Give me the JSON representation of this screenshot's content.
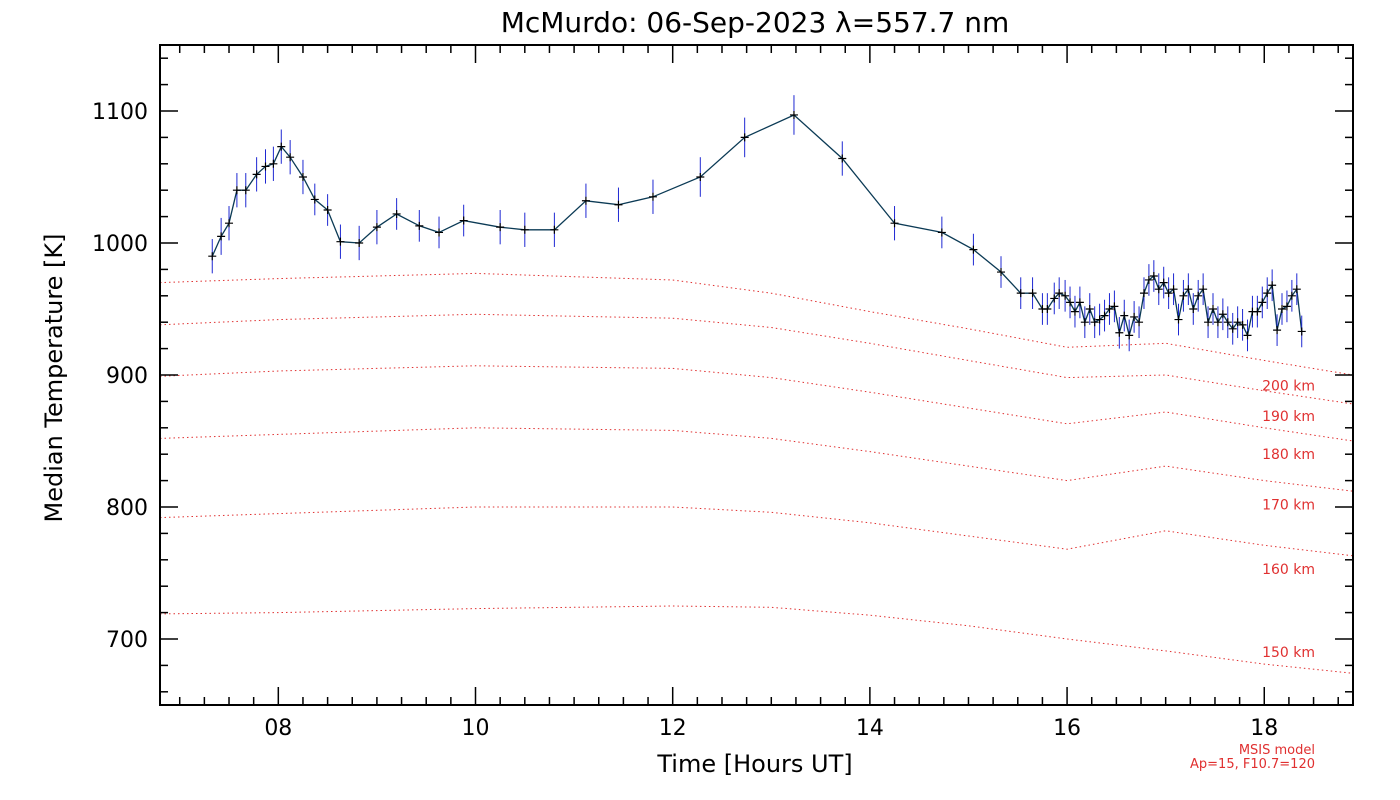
{
  "chart_data": {
    "type": "line",
    "title": "McMurdo: 06-Sep-2023 λ=557.7 nm",
    "xlabel": "Time [Hours UT]",
    "ylabel": "Median Temperature [K]",
    "xlim": [
      6.8,
      18.9
    ],
    "ylim": [
      650,
      1150
    ],
    "xticks": [
      8,
      10,
      12,
      14,
      16,
      18
    ],
    "xtick_labels": [
      "08",
      "10",
      "12",
      "14",
      "16",
      "18"
    ],
    "yticks": [
      700,
      800,
      900,
      1000,
      1100
    ],
    "ytick_labels": [
      "700",
      "800",
      "900",
      "1000",
      "1100"
    ],
    "grid": false,
    "series": [
      {
        "color": "#000000",
        "errcolor": "#1e28d2",
        "x": [
          7.33,
          7.42,
          7.5,
          7.58,
          7.67,
          7.78,
          7.87,
          7.95,
          8.03,
          8.12,
          8.25,
          8.37,
          8.5,
          8.63,
          8.82,
          9.0,
          9.2,
          9.43,
          9.63,
          9.88,
          10.25,
          10.5,
          10.8,
          11.12,
          11.45,
          11.8,
          12.28,
          12.73,
          13.23,
          13.72,
          14.25,
          14.73,
          15.05,
          15.33,
          15.53,
          15.65,
          15.75,
          15.8,
          15.87,
          15.92,
          15.98,
          16.03,
          16.08,
          16.13,
          16.18,
          16.23,
          16.28,
          16.33,
          16.38,
          16.43,
          16.48,
          16.53,
          16.58,
          16.63,
          16.68,
          16.73,
          16.78,
          16.83,
          16.88,
          16.93,
          16.98,
          17.03,
          17.08,
          17.13,
          17.18,
          17.23,
          17.28,
          17.33,
          17.38,
          17.43,
          17.48,
          17.53,
          17.58,
          17.63,
          17.68,
          17.73,
          17.78,
          17.83,
          17.88,
          17.93,
          17.98,
          18.03,
          18.08,
          18.13,
          18.18,
          18.23,
          18.28,
          18.33,
          18.38
        ],
        "y": [
          990,
          1005,
          1015,
          1040,
          1040,
          1052,
          1058,
          1060,
          1073,
          1065,
          1050,
          1033,
          1025,
          1001,
          1000,
          1012,
          1022,
          1013,
          1008,
          1017,
          1012,
          1010,
          1010,
          1032,
          1029,
          1035,
          1050,
          1080,
          1097,
          1064,
          1015,
          1008,
          995,
          978,
          962,
          962,
          950,
          950,
          958,
          962,
          960,
          955,
          948,
          955,
          940,
          950,
          940,
          942,
          945,
          950,
          952,
          932,
          945,
          930,
          944,
          940,
          962,
          972,
          975,
          965,
          970,
          962,
          965,
          942,
          960,
          965,
          950,
          960,
          965,
          940,
          950,
          940,
          946,
          940,
          935,
          940,
          938,
          930,
          948,
          948,
          955,
          962,
          968,
          934,
          950,
          952,
          960,
          965,
          933
        ],
        "err": [
          13,
          14,
          13,
          13,
          13,
          13,
          13,
          13,
          13,
          13,
          13,
          12,
          12,
          13,
          13,
          13,
          12,
          12,
          12,
          12,
          13,
          13,
          13,
          13,
          13,
          13,
          15,
          15,
          15,
          13,
          13,
          12,
          12,
          12,
          12,
          12,
          12,
          12,
          12,
          12,
          12,
          12,
          12,
          12,
          12,
          12,
          12,
          12,
          12,
          12,
          12,
          12,
          12,
          12,
          12,
          12,
          12,
          12,
          12,
          12,
          12,
          12,
          12,
          12,
          12,
          12,
          12,
          12,
          12,
          12,
          12,
          12,
          12,
          12,
          12,
          12,
          12,
          12,
          12,
          12,
          12,
          12,
          12,
          12,
          12,
          12,
          12,
          12,
          12
        ]
      }
    ],
    "model_curves": [
      {
        "label": "150 km",
        "x": [
          6.8,
          8,
          10,
          12,
          13,
          14,
          15,
          16,
          17,
          18,
          18.9
        ],
        "y": [
          719,
          720,
          723,
          725,
          724,
          718,
          710,
          700,
          691,
          681,
          674
        ]
      },
      {
        "label": "160 km",
        "x": [
          6.8,
          8,
          10,
          12,
          13,
          14,
          15,
          16,
          17,
          18,
          18.9
        ],
        "y": [
          792,
          795,
          800,
          800,
          796,
          788,
          778,
          768,
          782,
          771,
          763
        ]
      },
      {
        "label": "170 km",
        "x": [
          6.8,
          8,
          10,
          12,
          13,
          14,
          15,
          16,
          17,
          18,
          18.9
        ],
        "y": [
          852,
          855,
          860,
          858,
          852,
          842,
          831,
          820,
          831,
          820,
          812
        ]
      },
      {
        "label": "180 km",
        "x": [
          6.8,
          8,
          10,
          12,
          13,
          14,
          15,
          16,
          17,
          18,
          18.9
        ],
        "y": [
          899,
          903,
          907,
          905,
          898,
          887,
          875,
          863,
          872,
          860,
          850
        ]
      },
      {
        "label": "190 km",
        "x": [
          6.8,
          8,
          10,
          12,
          13,
          14,
          15,
          16,
          17,
          18,
          18.9
        ],
        "y": [
          938,
          942,
          946,
          943,
          936,
          924,
          911,
          898,
          900,
          888,
          878
        ]
      },
      {
        "label": "200 km",
        "x": [
          6.8,
          8,
          10,
          12,
          13,
          14,
          15,
          16,
          17,
          18,
          18.9
        ],
        "y": [
          970,
          973,
          977,
          972,
          962,
          948,
          935,
          921,
          924,
          911,
          900
        ]
      }
    ],
    "model_label_positions": {
      "150 km": 690,
      "160 km": 753,
      "170 km": 802,
      "180 km": 840,
      "190 km": 869,
      "200 km": 892
    },
    "model_color": "#e03030",
    "note_lines": [
      "MSIS model",
      "Ap=15, F10.7=120"
    ]
  }
}
